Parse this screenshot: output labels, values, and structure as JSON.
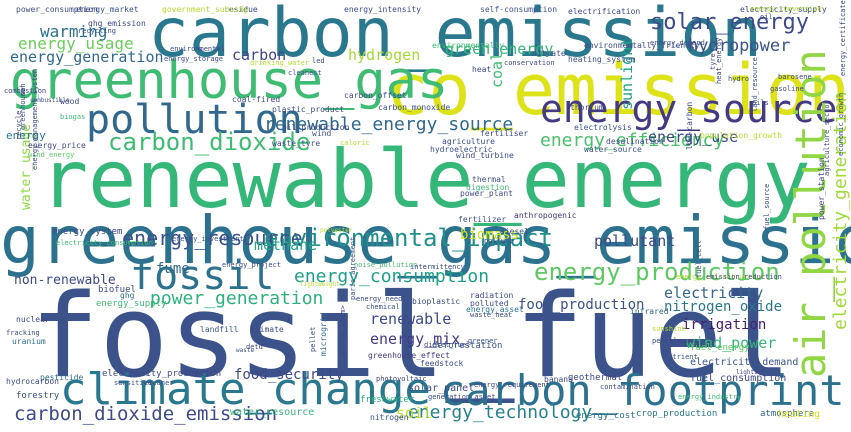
{
  "words": [
    {
      "text": "fossil_fuel",
      "color": "#3b528b"
    },
    {
      "text": "renewable_energy",
      "color": "#35b779"
    },
    {
      "text": "greenhouse_gas_emission",
      "color": "#2c728e"
    },
    {
      "text": "co_emission",
      "color": "#dde318"
    },
    {
      "text": "carbon_emission",
      "color": "#2a788e"
    },
    {
      "text": "greenhouse_gas",
      "color": "#3fbc73"
    },
    {
      "text": "pollution",
      "color": "#31688e"
    },
    {
      "text": "energy_source",
      "color": "#443983"
    },
    {
      "text": "climate_change",
      "color": "#2a788e"
    },
    {
      "text": "carbon_footprint",
      "color": "#2c728e"
    },
    {
      "text": "air_pollution",
      "color": "#90d743"
    },
    {
      "text": "fossil",
      "color": "#2c728e"
    },
    {
      "text": "energy_production",
      "color": "#5ec962"
    },
    {
      "text": "solar_energy",
      "color": "#3e4a89"
    },
    {
      "text": "carbon_dioxide",
      "color": "#3fbc73"
    },
    {
      "text": "environmental_impact",
      "color": "#21908d"
    },
    {
      "text": "renewable_energy_source",
      "color": "#31688e"
    },
    {
      "text": "energy_efficiency",
      "color": "#4ac16d"
    },
    {
      "text": "energy_resource",
      "color": "#3b528b"
    },
    {
      "text": "electricity_generation",
      "color": "#a0da39"
    },
    {
      "text": "carbon_dioxide_emission",
      "color": "#3e4a89"
    },
    {
      "text": "energy_technology",
      "color": "#26828e"
    },
    {
      "text": "energy_consumption",
      "color": "#1fa088"
    },
    {
      "text": "power_generation",
      "color": "#2db27d"
    },
    {
      "text": "hydropower",
      "color": "#3b528b"
    },
    {
      "text": "energy_usage",
      "color": "#6ccd5a"
    },
    {
      "text": "energy_generation",
      "color": "#31688e"
    },
    {
      "text": "green_energy",
      "color": "#37b878"
    },
    {
      "text": "hydrogen",
      "color": "#a5db36"
    },
    {
      "text": "methane",
      "color": "#22a884"
    },
    {
      "text": "coal",
      "color": "#3fbc73"
    },
    {
      "text": "sunlight",
      "color": "#20a486"
    },
    {
      "text": "warming",
      "color": "#2c728e"
    },
    {
      "text": "carbon",
      "color": "#404688"
    },
    {
      "text": "energy_use",
      "color": "#3e4a89"
    },
    {
      "text": "water_usage",
      "color": "#90d743"
    },
    {
      "text": "biomass",
      "color": "#d0e11c"
    },
    {
      "text": "pollutant",
      "color": "#3e4989"
    },
    {
      "text": "electricity",
      "color": "#31688e"
    },
    {
      "text": "nitrogen_oxide",
      "color": "#2a788e"
    },
    {
      "text": "irrigation",
      "color": "#481f70"
    },
    {
      "text": "wind_power",
      "color": "#35b779"
    },
    {
      "text": "energy_mix",
      "color": "#443983"
    },
    {
      "text": "renewable",
      "color": "#3e4a89"
    },
    {
      "text": "food_production",
      "color": "#3b528b"
    },
    {
      "text": "food_security",
      "color": "#3e4989"
    },
    {
      "text": "fume",
      "color": "#31688e"
    },
    {
      "text": "non-renewable",
      "color": "#3e4a89"
    },
    {
      "text": "soil",
      "color": "#bddf26"
    },
    {
      "text": "energy",
      "color": "#2a788e"
    },
    {
      "text": "water_resource",
      "color": "#35b779"
    },
    {
      "text": "solar_panel",
      "color": "#3e4a89"
    },
    {
      "text": "fuel_consumption",
      "color": "#3e4989"
    },
    {
      "text": "electricity_demand",
      "color": "#3b528b"
    },
    {
      "text": "fuel_energy",
      "color": "#5ec962"
    },
    {
      "text": "crop_production",
      "color": "#2a788e"
    },
    {
      "text": "atmosphere",
      "color": "#31688e"
    },
    {
      "text": "heating",
      "color": "#d8e219"
    },
    {
      "text": "energy_cost",
      "color": "#2c728e"
    },
    {
      "text": "nitrogen",
      "color": "#3b528b"
    },
    {
      "text": "geothermal",
      "color": "#3e4a89"
    },
    {
      "text": "banana",
      "color": "#3e4989"
    },
    {
      "text": "freshwater",
      "color": "#2db27d"
    },
    {
      "text": "pesticide",
      "color": "#2c728e"
    },
    {
      "text": "forestry",
      "color": "#3b528b"
    },
    {
      "text": "hydrocarbon",
      "color": "#3e4a89"
    },
    {
      "text": "uranium",
      "color": "#2c728e"
    },
    {
      "text": "nuclear",
      "color": "#3e4989"
    },
    {
      "text": "fracking",
      "color": "#3e4a89"
    },
    {
      "text": "landfill",
      "color": "#3b528b"
    },
    {
      "text": "climate",
      "color": "#3e4989"
    },
    {
      "text": "microgrid",
      "color": "#31688e"
    },
    {
      "text": "electricity_production",
      "color": "#3e4a89"
    },
    {
      "text": "greenhouse_effect",
      "color": "#443983"
    },
    {
      "text": "deforestation",
      "color": "#3b528b"
    },
    {
      "text": "feedstock",
      "color": "#3e4989"
    },
    {
      "text": "energy_supply",
      "color": "#3fbc73"
    },
    {
      "text": "biofuel",
      "color": "#3e4a89"
    },
    {
      "text": "ghg",
      "color": "#2c728e"
    },
    {
      "text": "energy_asset",
      "color": "#2c728e"
    },
    {
      "text": "infrared",
      "color": "#31688e"
    },
    {
      "text": "radiation",
      "color": "#3e4a89"
    },
    {
      "text": "polluted",
      "color": "#3b528b"
    },
    {
      "text": "waste_heat",
      "color": "#3e4989"
    },
    {
      "text": "bioplastic",
      "color": "#3e4a89"
    },
    {
      "text": "diesel",
      "color": "#3b528b"
    },
    {
      "text": "pollute",
      "color": "#3e4989"
    },
    {
      "text": "anthropogenic",
      "color": "#443983"
    },
    {
      "text": "fertilizer",
      "color": "#3b528b"
    },
    {
      "text": "power_plant",
      "color": "#3e4a89"
    },
    {
      "text": "digestion",
      "color": "#3fbc73"
    },
    {
      "text": "thermal",
      "color": "#3b528b"
    },
    {
      "text": "wind_turbine",
      "color": "#3e4989"
    },
    {
      "text": "hydroelectric",
      "color": "#3b528b"
    },
    {
      "text": "agriculture",
      "color": "#3e4a89"
    },
    {
      "text": "fertiliser",
      "color": "#3e4989"
    },
    {
      "text": "caloric",
      "color": "#b5de2b"
    },
    {
      "text": "waste_tyre",
      "color": "#3e4a89"
    },
    {
      "text": "wind",
      "color": "#3b528b"
    },
    {
      "text": "oil_production",
      "color": "#3e4a89"
    },
    {
      "text": "coal-fired",
      "color": "#3e4989"
    },
    {
      "text": "plastic_product",
      "color": "#3e4a89"
    },
    {
      "text": "carbon_monoxide",
      "color": "#3b528b"
    },
    {
      "text": "carbon_offset",
      "color": "#3e4a89"
    },
    {
      "text": "thorium",
      "color": "#3e4989"
    },
    {
      "text": "electrolysis",
      "color": "#3b528b"
    },
    {
      "text": "desalination",
      "color": "#3e4a89"
    },
    {
      "text": "water_source",
      "color": "#3b528b"
    },
    {
      "text": "population_growth",
      "color": "#b5de2b"
    },
    {
      "text": "low-carbon",
      "color": "#3e4989"
    },
    {
      "text": "heating_system",
      "color": "#3b528b"
    },
    {
      "text": "conservation",
      "color": "#3e4a89"
    },
    {
      "text": "nitrate",
      "color": "#3b528b"
    },
    {
      "text": "heat",
      "color": "#3e4989"
    },
    {
      "text": "environmentally",
      "color": "#3fbc73"
    },
    {
      "text": "environmentally_friendly",
      "color": "#3e4a89"
    },
    {
      "text": "energy_demand",
      "color": "#3b528b"
    },
    {
      "text": "electricity_supply",
      "color": "#3e4989"
    },
    {
      "text": "electrification",
      "color": "#3e4a89"
    },
    {
      "text": "self-consumption",
      "color": "#3b528b"
    },
    {
      "text": "energy_intensity",
      "color": "#3e4a89"
    },
    {
      "text": "residue",
      "color": "#3e4989"
    },
    {
      "text": "government_subsidy",
      "color": "#b5de2b"
    },
    {
      "text": "energy_market",
      "color": "#3b528b"
    },
    {
      "text": "power_consumption",
      "color": "#3e4a89"
    },
    {
      "text": "ghg_emission",
      "color": "#3e4989"
    },
    {
      "text": "recycling",
      "color": "#3b528b"
    },
    {
      "text": "environmental",
      "color": "#3e4a89"
    },
    {
      "text": "energy_storage",
      "color": "#3e4989"
    },
    {
      "text": "drinking_water",
      "color": "#b5de2b"
    },
    {
      "text": "cleanest",
      "color": "#3b528b"
    },
    {
      "text": "led",
      "color": "#3e4a89"
    },
    {
      "text": "wood",
      "color": "#3e4989"
    },
    {
      "text": "combustion",
      "color": "#3e4a89"
    },
    {
      "text": "greenhouse",
      "color": "#3b528b"
    },
    {
      "text": "energy_price",
      "color": "#3e4989"
    },
    {
      "text": "wind_energy",
      "color": "#5ec962"
    },
    {
      "text": "energy_management_system",
      "color": "#3e4a89"
    },
    {
      "text": "biogas",
      "color": "#3fbc73"
    },
    {
      "text": "recycle",
      "color": "#3e4989"
    },
    {
      "text": "energy_system",
      "color": "#3e4a89"
    },
    {
      "text": "electricity_consumption",
      "color": "#3fbc73"
    },
    {
      "text": "energy_investment",
      "color": "#3b528b"
    },
    {
      "text": "energy_project",
      "color": "#3e4a89"
    },
    {
      "text": "noise_pollution",
      "color": "#3fbc73"
    },
    {
      "text": "intermittency",
      "color": "#3e4a89"
    },
    {
      "text": "energy_need",
      "color": "#3e4989"
    },
    {
      "text": "chemical",
      "color": "#3e4a89"
    },
    {
      "text": "paris_agreement",
      "color": "#3b528b"
    },
    {
      "text": "pellet",
      "color": "#3e4a89"
    },
    {
      "text": "energy_<num>",
      "color": "#3e4989"
    },
    {
      "text": "diesel_fuel",
      "color": "#3e4a89"
    },
    {
      "text": "greener",
      "color": "#3b528b"
    },
    {
      "text": "photovoltaic",
      "color": "#3e4a89"
    },
    {
      "text": "energy_requirement",
      "color": "#3e4989"
    },
    {
      "text": "generation_asset",
      "color": "#3e4a89"
    },
    {
      "text": "sensitive",
      "color": "#3b528b"
    },
    {
      "text": "cleaner",
      "color": "#3e4a89"
    },
    {
      "text": "detd",
      "color": "#3e4989"
    },
    {
      "text": "sunshine",
      "color": "#b5de2b"
    },
    {
      "text": "petroleum",
      "color": "#3e4a89"
    },
    {
      "text": "nutrient",
      "color": "#3b528b"
    },
    {
      "text": "lighting",
      "color": "#3e4a89"
    },
    {
      "text": "contamination",
      "color": "#3e4989"
    },
    {
      "text": "energy_industry",
      "color": "#3fbc73"
    },
    {
      "text": "energy_infrastructure",
      "color": "#b5de2b"
    },
    {
      "text": "emission_reduction",
      "color": "#3e4a89"
    },
    {
      "text": "fuel_cell",
      "color": "#3b528b"
    },
    {
      "text": "fuel_source",
      "color": "#3e4a89"
    },
    {
      "text": "power_station",
      "color": "#3e4989"
    },
    {
      "text": "agriculture_sector",
      "color": "#3e4a89"
    },
    {
      "text": "economic_growth",
      "color": "#3b528b"
    },
    {
      "text": "energy_certificate",
      "color": "#3e4a89"
    },
    {
      "text": "barosene",
      "color": "#3e4989"
    },
    {
      "text": "gasoline",
      "color": "#3e4a89"
    },
    {
      "text": "hydro",
      "color": "#3b528b"
    },
    {
      "text": "tyre",
      "color": "#3e4a89"
    },
    {
      "text": "heat_energy",
      "color": "#3e4989"
    },
    {
      "text": "oils",
      "color": "#3e4a89"
    },
    {
      "text": "land_resource",
      "color": "#3b528b"
    },
    {
      "text": "energy_conversion",
      "color": "#b5de2b"
    },
    {
      "text": "oil",
      "color": "#3e4989"
    },
    {
      "text": "mwh",
      "color": "#3e4a89"
    },
    {
      "text": "combustible",
      "color": "#3b528b"
    },
    {
      "text": "polyester",
      "color": "#b5de2b"
    },
    {
      "text": "waste",
      "color": "#3e4a89"
    },
    {
      "text": "lightweight",
      "color": "#b5de2b"
    }
  ]
}
